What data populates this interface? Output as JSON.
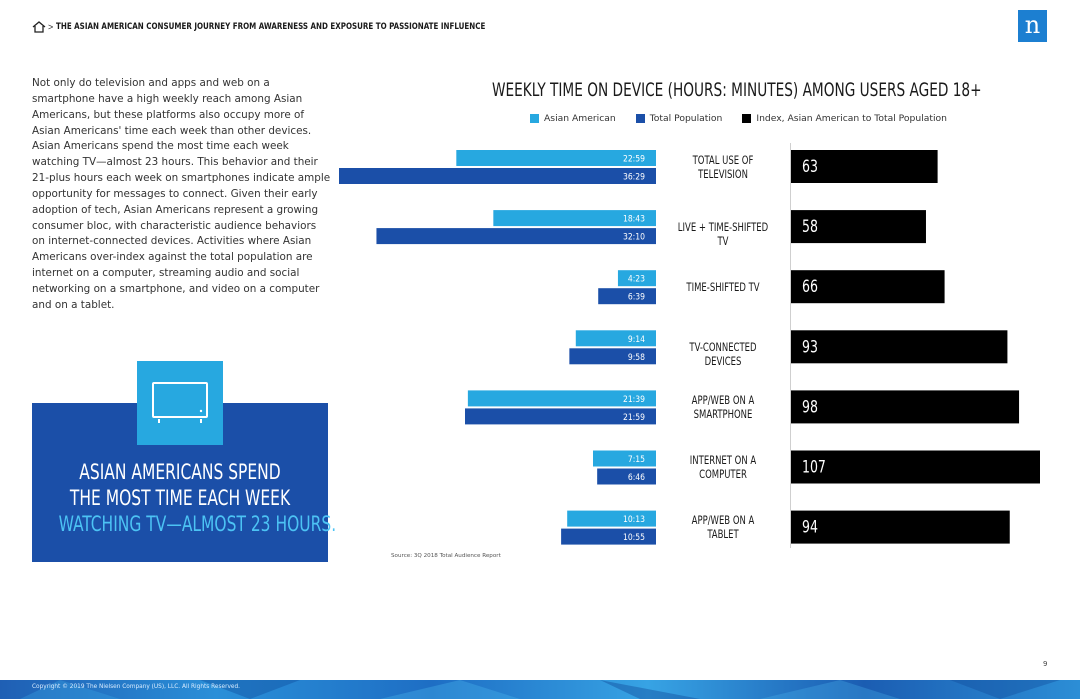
{
  "header": {
    "breadcrumb_separator": ">",
    "title": "THE ASIAN AMERICAN CONSUMER JOURNEY FROM AWARENESS AND EXPOSURE TO PASSIONATE INFLUENCE",
    "home_icon": "home-icon"
  },
  "logo": {
    "letter": "n",
    "color": "#1c7fd1"
  },
  "body_text": "Not only do television and apps and web on a smartphone have a high weekly reach among Asian Americans, but these platforms also occupy more of Asian Americans' time each week than other devices. Asian Americans spend the most time each week watching TV—almost 23 hours. This behavior and their 21-plus hours each week on smartphones indicate ample opportunity for messages to connect. Given their early adoption of tech, Asian Americans represent a growing consumer bloc, with characteristic audience behaviors on internet-connected devices. Activities where Asian Americans over-index against the total population are internet on a computer, streaming audio and social networking on a smartphone, and video on a computer and on a tablet.",
  "callout": {
    "icon": "tv-icon",
    "line1": "ASIAN AMERICANS SPEND",
    "line2": "THE MOST TIME EACH WEEK",
    "line3": "WATCHING TV—ALMOST 23 HOURS.",
    "box_color": "#1b4fa8",
    "icon_box_color": "#27a8e0",
    "accent_color": "#4cc3f4"
  },
  "chart_data": {
    "type": "bar",
    "orientation": "horizontal",
    "title": "WEEKLY TIME ON DEVICE (HOURS: MINUTES) AMONG USERS AGED 18+",
    "legend": [
      "Asian American",
      "Total Population",
      "Index, Asian American to Total Population"
    ],
    "legend_placement": "top",
    "categories": [
      "TOTAL USE OF\nTELEVISION",
      "LIVE + TIME-SHIFTED TV",
      "TIME-SHIFTED TV",
      "TV-CONNECTED DEVICES",
      "APP/WEB ON A\nSMARTPHONE",
      "INTERNET ON A\nCOMPUTER",
      "APP/WEB ON A\nTABLET"
    ],
    "series": [
      {
        "name": "Asian American",
        "color": "#27a8e0",
        "labels": [
          "22:59",
          "18:43",
          "4:23",
          "9:14",
          "21:39",
          "7:15",
          "10:13"
        ],
        "values": [
          22.98,
          18.72,
          4.38,
          9.23,
          21.65,
          7.25,
          10.22
        ]
      },
      {
        "name": "Total Population",
        "color": "#1b4fa8",
        "labels": [
          "36:29",
          "32:10",
          "6:39",
          "9:58",
          "21:59",
          "6:46",
          "10:55"
        ],
        "values": [
          36.48,
          32.17,
          6.65,
          9.97,
          21.98,
          6.77,
          10.92
        ]
      },
      {
        "name": "Index, Asian American to Total Population",
        "color": "#000000",
        "labels": [
          "63",
          "58",
          "66",
          "93",
          "98",
          "107",
          "94"
        ],
        "values": [
          63,
          58,
          66,
          93,
          98,
          107,
          94
        ]
      }
    ],
    "time_axis_max_hours": 36.48,
    "index_axis_max": 107,
    "grid": false
  },
  "source": "Source: 3Q 2018 Total Audience Report",
  "page_number": "9",
  "copyright": "Copyright © 2019 The Nielsen Company (US), LLC. All Rights Reserved."
}
